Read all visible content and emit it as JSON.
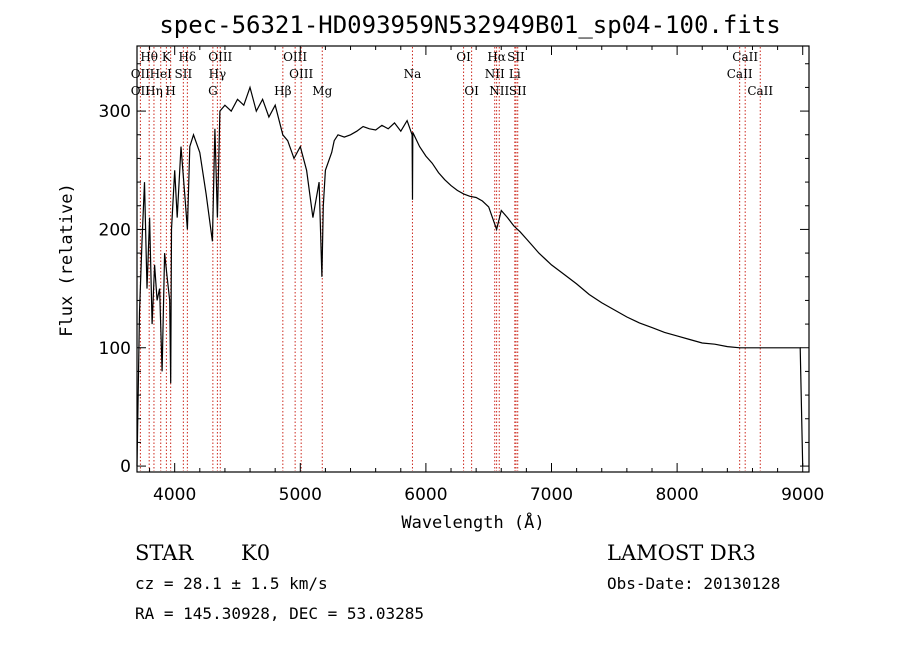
{
  "chart_data": {
    "type": "line",
    "title": "spec-56321-HD093959N532949B01_sp04-100.fits",
    "xlabel": "Wavelength (Å)",
    "ylabel": "Flux (relative)",
    "xlim": [
      3700,
      9050
    ],
    "ylim": [
      -5,
      355
    ],
    "xticks": [
      4000,
      5000,
      6000,
      7000,
      8000,
      9000
    ],
    "yticks": [
      0,
      100,
      200,
      300
    ],
    "series": [
      {
        "name": "flux",
        "x": [
          3700,
          3720,
          3740,
          3760,
          3780,
          3800,
          3820,
          3840,
          3860,
          3880,
          3900,
          3920,
          3940,
          3960,
          3968,
          3975,
          4000,
          4020,
          4050,
          4080,
          4101,
          4120,
          4150,
          4200,
          4250,
          4300,
          4320,
          4340,
          4360,
          4400,
          4450,
          4500,
          4550,
          4600,
          4650,
          4700,
          4750,
          4800,
          4861,
          4900,
          4950,
          5000,
          5050,
          5100,
          5150,
          5172,
          5183,
          5200,
          5250,
          5270,
          5300,
          5350,
          5400,
          5450,
          5500,
          5550,
          5600,
          5650,
          5700,
          5750,
          5800,
          5850,
          5890,
          5893,
          5896,
          5950,
          6000,
          6050,
          6100,
          6150,
          6200,
          6250,
          6300,
          6350,
          6400,
          6450,
          6500,
          6563,
          6600,
          6650,
          6700,
          6750,
          6800,
          6850,
          6900,
          6950,
          7000,
          7050,
          7100,
          7200,
          7300,
          7400,
          7500,
          7600,
          7700,
          7800,
          7900,
          8000,
          8100,
          8200,
          8300,
          8400,
          8500,
          8600,
          8700,
          8800,
          8900,
          8980,
          9000
        ],
        "y": [
          0,
          130,
          190,
          240,
          150,
          210,
          120,
          170,
          140,
          150,
          80,
          180,
          160,
          140,
          70,
          200,
          250,
          210,
          270,
          230,
          200,
          270,
          280,
          265,
          230,
          190,
          285,
          210,
          300,
          305,
          300,
          310,
          305,
          320,
          300,
          310,
          295,
          305,
          280,
          275,
          260,
          270,
          250,
          210,
          240,
          160,
          220,
          250,
          265,
          275,
          280,
          278,
          280,
          283,
          287,
          285,
          284,
          288,
          285,
          290,
          283,
          292,
          280,
          225,
          282,
          270,
          262,
          256,
          248,
          242,
          237,
          233,
          230,
          228,
          227,
          224,
          219,
          200,
          216,
          210,
          203,
          198,
          192,
          186,
          180,
          175,
          170,
          166,
          162,
          154,
          145,
          138,
          132,
          126,
          121,
          117,
          113,
          110,
          107,
          104,
          103,
          101,
          100,
          100,
          100,
          100,
          100,
          100,
          0
        ]
      }
    ],
    "lines": [
      {
        "name": "Hθ",
        "wl": 3797,
        "label_row": 1
      },
      {
        "name": "OII",
        "wl": 3727,
        "label_row": 2
      },
      {
        "name": "OII",
        "wl": 3727,
        "label_row": 3
      },
      {
        "name": "HeI",
        "wl": 3889,
        "label_row": 2
      },
      {
        "name": "Hη",
        "wl": 3835,
        "label_row": 3
      },
      {
        "name": "K",
        "wl": 3934,
        "label_row": 1
      },
      {
        "name": "H",
        "wl": 3968,
        "label_row": 3
      },
      {
        "name": "SII",
        "wl": 4069,
        "label_row": 2
      },
      {
        "name": "Hδ",
        "wl": 4101,
        "label_row": 1
      },
      {
        "name": "OIII",
        "wl": 4363,
        "label_row": 1
      },
      {
        "name": "Hγ",
        "wl": 4340,
        "label_row": 2
      },
      {
        "name": "G",
        "wl": 4304,
        "label_row": 3
      },
      {
        "name": "Hβ",
        "wl": 4861,
        "label_row": 3
      },
      {
        "name": "OIII",
        "wl": 4959,
        "label_row": 1
      },
      {
        "name": "OIII",
        "wl": 5007,
        "label_row": 2
      },
      {
        "name": "Mg",
        "wl": 5175,
        "label_row": 3
      },
      {
        "name": "Na",
        "wl": 5893,
        "label_row": 2
      },
      {
        "name": "OI",
        "wl": 6300,
        "label_row": 1
      },
      {
        "name": "OI",
        "wl": 6364,
        "label_row": 3
      },
      {
        "name": "Hα",
        "wl": 6563,
        "label_row": 1
      },
      {
        "name": "NII",
        "wl": 6548,
        "label_row": 2
      },
      {
        "name": "NII",
        "wl": 6584,
        "label_row": 3
      },
      {
        "name": "SII",
        "wl": 6717,
        "label_row": 1
      },
      {
        "name": "Li",
        "wl": 6708,
        "label_row": 2
      },
      {
        "name": "SII",
        "wl": 6731,
        "label_row": 3
      },
      {
        "name": "CaII",
        "wl": 8542,
        "label_row": 1
      },
      {
        "name": "CaII",
        "wl": 8498,
        "label_row": 2
      },
      {
        "name": "CaII",
        "wl": 8662,
        "label_row": 3
      }
    ]
  },
  "info": {
    "class_label": "STAR",
    "subclass": "K0",
    "survey": "LAMOST DR3",
    "cz": "cz = 28.1 ± 1.5 km/s",
    "obs_date": "Obs-Date: 20130128",
    "radec": "RA = 145.30928, DEC =  53.03285"
  }
}
